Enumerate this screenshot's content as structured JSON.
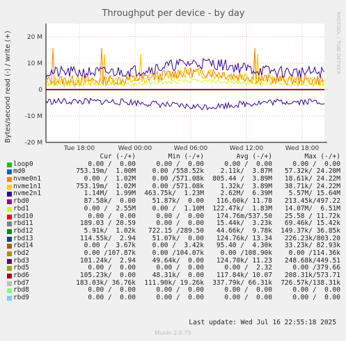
{
  "chart_data": {
    "type": "line",
    "title": "Throughput per device - by day",
    "ylabel": "Bytes/second read (-) / write (+)",
    "ylim": [
      -20000000,
      25000000
    ],
    "y_ticks": [
      {
        "value": 20000000,
        "label": "20 M"
      },
      {
        "value": 10000000,
        "label": "10 M"
      },
      {
        "value": 0,
        "label": "0"
      },
      {
        "value": -10000000,
        "label": "-10 M"
      },
      {
        "value": -20000000,
        "label": "-20 M"
      }
    ],
    "x_ticks": [
      {
        "frac": 0.12,
        "label": "Tue 18:00"
      },
      {
        "frac": 0.32,
        "label": "Wed 00:00"
      },
      {
        "frac": 0.52,
        "label": "Wed 06:00"
      },
      {
        "frac": 0.72,
        "label": "Wed 12:00"
      },
      {
        "frac": 0.92,
        "label": "Wed 18:00"
      }
    ],
    "grid": true,
    "side_label": "RRDTOOL / TOBI OETIKER",
    "columns": [
      "Cur (-/+)",
      "Min (-/+)",
      "Avg (-/+)",
      "Max (-/+)"
    ],
    "series": [
      {
        "name": "loop0",
        "color": "#00cc00",
        "cur": "0.00 /  0.00",
        "min": "0.00 /  0.00",
        "avg": "0.00 /  0.00",
        "max": "0.00 /  0.00"
      },
      {
        "name": "md0",
        "color": "#0066b3",
        "cur": "753.19m/  1.00M",
        "min": "0.00 /558.52k",
        "avg": "2.11k/  3.87M",
        "max": "57.32k/ 24.20M"
      },
      {
        "name": "nvme0n1",
        "color": "#ff8000",
        "cur": "0.00 /  1.02M",
        "min": "0.00 /571.08k",
        "avg": "805.44 /  3.89M",
        "max": "18.61k/ 24.22M"
      },
      {
        "name": "nvme1n1",
        "color": "#ffcc00",
        "cur": "753.19m/  1.02M",
        "min": "0.00 /571.08k",
        "avg": "1.32k/  3.89M",
        "max": "38.71k/ 24.22M"
      },
      {
        "name": "nvme2n1",
        "color": "#330099",
        "cur": "1.14M/  1.99M",
        "min": "463.75k/  1.23M",
        "avg": "2.62M/  6.39M",
        "max": "5.57M/ 15.64M"
      },
      {
        "name": "rbd0",
        "color": "#990099",
        "cur": "87.58k/  0.00",
        "min": "51.87k/  0.00",
        "avg": "116.60k/ 11.78",
        "max": "213.45k/497.22"
      },
      {
        "name": "rbd1",
        "color": "#ccff00",
        "cur": "0.00 /  2.55M",
        "min": "0.00 /  1.10M",
        "avg": "122.47k/  1.83M",
        "max": "14.07M/  6.51M"
      },
      {
        "name": "rbd10",
        "color": "#ff0000",
        "cur": "0.00 /  0.00",
        "min": "0.00 /  0.00",
        "avg": "174.76m/537.50",
        "max": "25.58 / 11.72k"
      },
      {
        "name": "rbd11",
        "color": "#808080",
        "cur": "189.03 / 20.59",
        "min": "0.00 /  0.00",
        "avg": "15.44k/  3.23k",
        "max": "69.46k/ 15.42k"
      },
      {
        "name": "rbd12",
        "color": "#008f00",
        "cur": "5.91k/  1.02k",
        "min": "722.15 /289.50",
        "avg": "44.66k/  9.78k",
        "max": "149.37k/ 36.85k"
      },
      {
        "name": "rbd13",
        "color": "#00487d",
        "cur": "114.55k/  2.94",
        "min": "51.07k/  0.00",
        "avg": "124.76k/ 13.34",
        "max": "226.23k/803.20"
      },
      {
        "name": "rbd14",
        "color": "#b35a00",
        "cur": "0.00 /  3.67k",
        "min": "0.00 /  3.42k",
        "avg": "95.40 /  4.30k",
        "max": "33.23k/ 82.93k"
      },
      {
        "name": "rbd2",
        "color": "#b38f00",
        "cur": "0.00 /107.87k",
        "min": "0.00 /104.07k",
        "avg": "0.00 /108.90k",
        "max": "0.00 /114.36k"
      },
      {
        "name": "rbd3",
        "color": "#6b006b",
        "cur": "101.24k/  2.94",
        "min": "49.64k/  0.00",
        "avg": "124.70k/ 11.23",
        "max": "248.68k/449.51"
      },
      {
        "name": "rbd5",
        "color": "#8fb300",
        "cur": "0.00 /  0.00",
        "min": "0.00 /  0.00",
        "avg": "0.00 /  2.32",
        "max": "0.00 /379.66"
      },
      {
        "name": "rbd6",
        "color": "#b30000",
        "cur": "105.23k/  0.00",
        "min": "48.31k/  0.00",
        "avg": "117.84k/ 10.07",
        "max": "208.31k/573.71"
      },
      {
        "name": "rbd7",
        "color": "#bebebe",
        "cur": "183.03k/ 36.76k",
        "min": "111.90k/ 19.26k",
        "avg": "337.79k/ 66.31k",
        "max": "726.57k/138.31k"
      },
      {
        "name": "rbd8",
        "color": "#80ff80",
        "cur": "0.00 /  0.00",
        "min": "0.00 /  0.00",
        "avg": "0.00 /  0.00",
        "max": "0.00 /  0.00"
      },
      {
        "name": "rbd9",
        "color": "#80c9ff",
        "cur": "0.00 /  0.00",
        "min": "0.00 /  0.00",
        "avg": "0.00 /  0.00",
        "max": "0.00 /  0.00"
      }
    ]
  },
  "footer": "Last update: Wed Jul 16 22:55:18 2025",
  "version": "Munin 2.0.75"
}
